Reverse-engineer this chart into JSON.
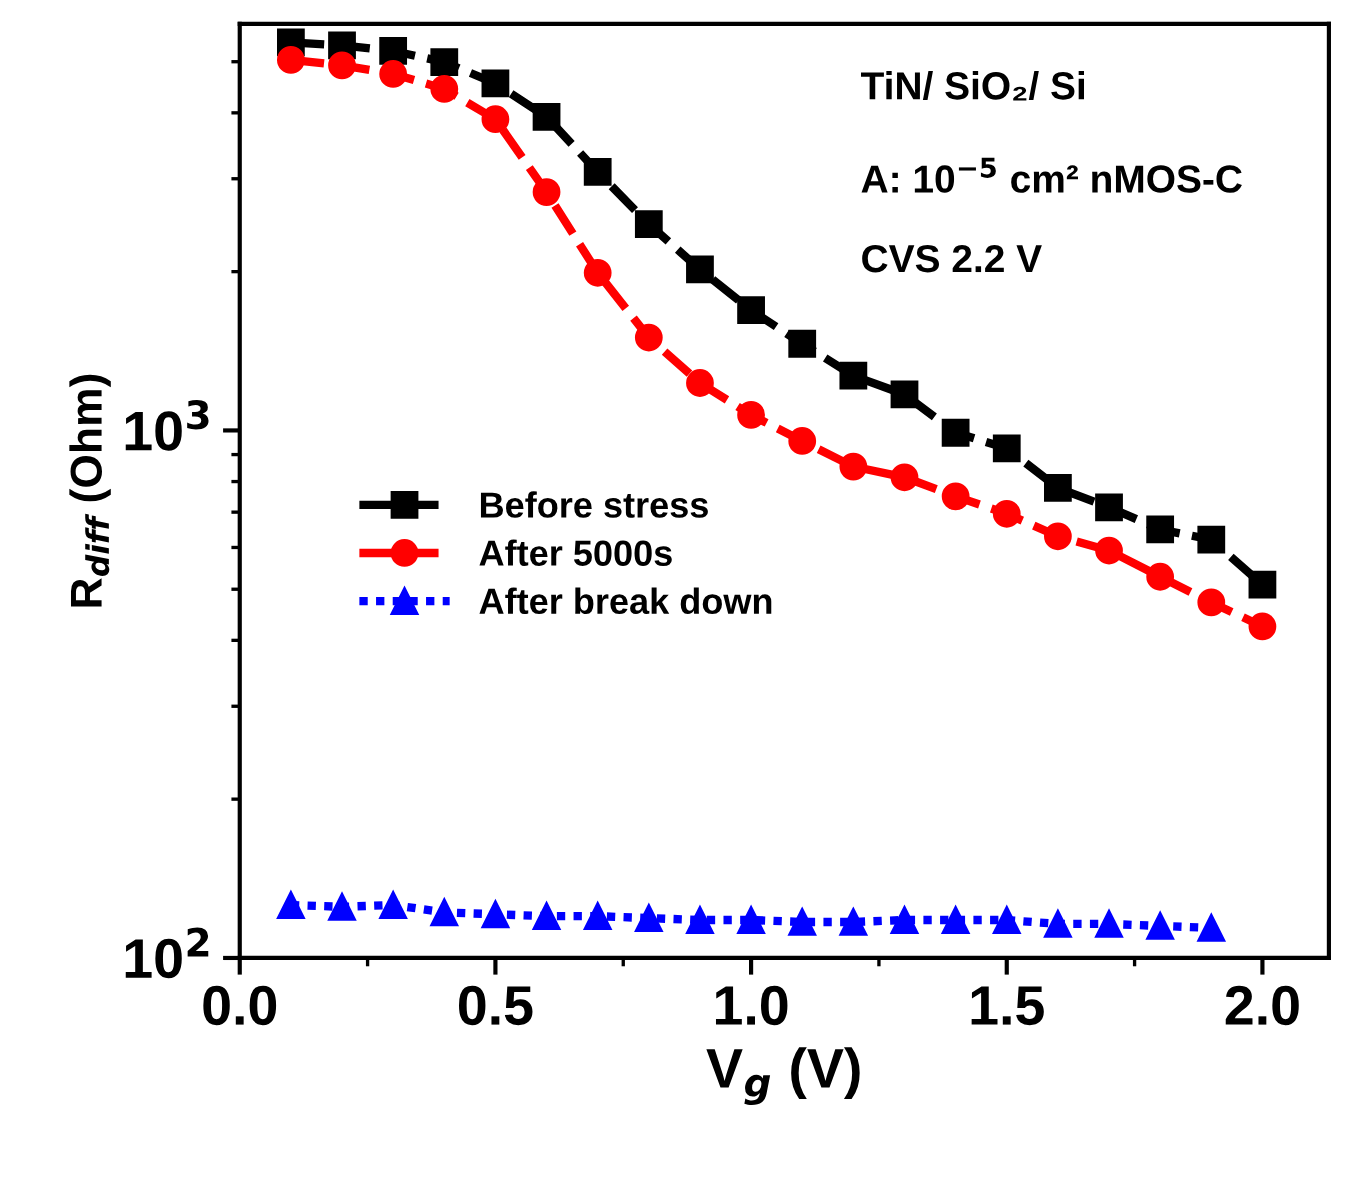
{
  "chart_data": {
    "type": "line",
    "xlabel": "V$_{g}$ (V)",
    "ylabel": "R$_{diff}$ (Ohm)",
    "x": [
      0.1,
      0.2,
      0.3,
      0.4,
      0.5,
      0.6,
      0.7,
      0.8,
      0.9,
      1.0,
      1.1,
      1.2,
      1.3,
      1.4,
      1.5,
      1.6,
      1.7,
      1.8,
      1.9,
      2.0
    ],
    "series": [
      {
        "name": "Before stress",
        "color": "#000000",
        "marker": "square",
        "line_style": "dashed",
        "values": [
          5440,
          5370,
          5240,
          4990,
          4550,
          3930,
          3090,
          2460,
          2020,
          1690,
          1460,
          1270,
          1170,
          990,
          925,
          778,
          715,
          649,
          621,
          510
        ]
      },
      {
        "name": "After 5000s",
        "color": "#ff0000",
        "marker": "circle",
        "line_style": "dashed",
        "values": [
          5040,
          4920,
          4740,
          4440,
          3890,
          2830,
          1990,
          1500,
          1230,
          1070,
          955,
          854,
          815,
          750,
          695,
          630,
          592,
          528,
          472,
          425
        ]
      },
      {
        "name": "After break down",
        "color": "#0000ff",
        "marker": "triangle",
        "line_style": "dotted",
        "x": [
          0.1,
          0.2,
          0.3,
          0.4,
          0.5,
          0.6,
          0.7,
          0.8,
          0.9,
          1.0,
          1.1,
          1.2,
          1.3,
          1.4,
          1.5,
          1.6,
          1.7,
          1.8,
          1.9
        ],
        "values": [
          126,
          125,
          126,
          122,
          121,
          120,
          120,
          119,
          118,
          118,
          117,
          117,
          118,
          118,
          118,
          116,
          116,
          115,
          114
        ]
      }
    ],
    "log": "y",
    "xlim": [
      0.0,
      2.13
    ],
    "xticks": [
      {
        "value": 0.0,
        "label": "0.0"
      },
      0.5,
      {
        "value": 1.0,
        "label": "1.0"
      },
      1.5,
      {
        "value": 2.0,
        "label": "2.0"
      }
    ],
    "ylim": [
      100,
      5900
    ],
    "yticks": [
      {
        "value": 100,
        "label": "10$^{2}$"
      },
      {
        "value": 1000,
        "label": "10$^{3}$"
      }
    ],
    "grid": false,
    "legend": "center left",
    "annotations": [
      "TiN/ SiO₂/ Si",
      "A: 10$^{−5}$ cm² nMOS-C",
      "CVS 2.2 V"
    ]
  }
}
